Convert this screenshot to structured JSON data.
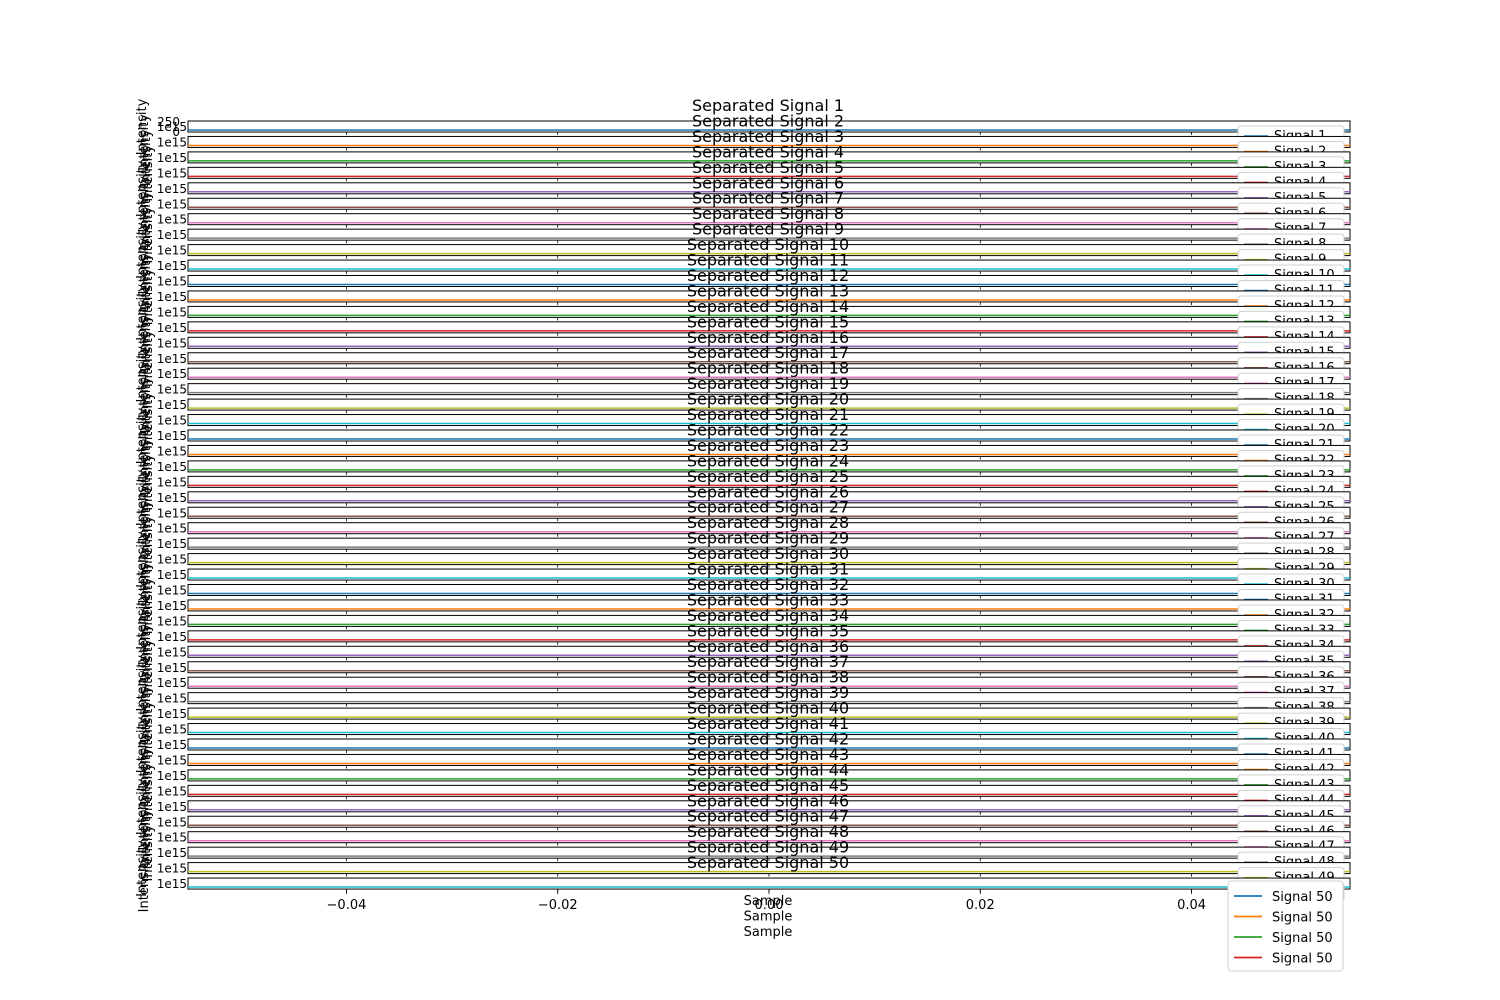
{
  "chart_data": {
    "type": "line",
    "panel_count": 50,
    "panels": [
      {
        "title": "Separated Signal 1",
        "offset_text": "1e15",
        "ylabel": "Intensity",
        "legend": "Signal 1"
      },
      {
        "title": "Separated Signal 2",
        "offset_text": "1e15",
        "ylabel": "Intensity",
        "legend": "Signal 2"
      },
      {
        "title": "Separated Signal 3",
        "offset_text": "1e15",
        "ylabel": "Intensity",
        "legend": "Signal 3"
      },
      {
        "title": "Separated Signal 4",
        "offset_text": "1e15",
        "ylabel": "Intensity",
        "legend": "Signal 4"
      },
      {
        "title": "Separated Signal 5",
        "offset_text": "1e15",
        "ylabel": "Intensity",
        "legend": "Signal 5"
      },
      {
        "title": "Separated Signal 6",
        "offset_text": "1e15",
        "ylabel": "Intensity",
        "legend": "Signal 6"
      },
      {
        "title": "Separated Signal 7",
        "offset_text": "1e15",
        "ylabel": "Intensity",
        "legend": "Signal 7"
      },
      {
        "title": "Separated Signal 8",
        "offset_text": "1e15",
        "ylabel": "Intensity",
        "legend": "Signal 8"
      },
      {
        "title": "Separated Signal 9",
        "offset_text": "1e15",
        "ylabel": "Intensity",
        "legend": "Signal 9"
      },
      {
        "title": "Separated Signal 10",
        "offset_text": "1e15",
        "ylabel": "Intensity",
        "legend": "Signal 10"
      },
      {
        "title": "Separated Signal 11",
        "offset_text": "1e15",
        "ylabel": "Intensity",
        "legend": "Signal 11"
      },
      {
        "title": "Separated Signal 12",
        "offset_text": "1e15",
        "ylabel": "Intensity",
        "legend": "Signal 12"
      },
      {
        "title": "Separated Signal 13",
        "offset_text": "1e15",
        "ylabel": "Intensity",
        "legend": "Signal 13"
      },
      {
        "title": "Separated Signal 14",
        "offset_text": "1e15",
        "ylabel": "Intensity",
        "legend": "Signal 14"
      },
      {
        "title": "Separated Signal 15",
        "offset_text": "1e15",
        "ylabel": "Intensity",
        "legend": "Signal 15"
      },
      {
        "title": "Separated Signal 16",
        "offset_text": "1e15",
        "ylabel": "Intensity",
        "legend": "Signal 16"
      },
      {
        "title": "Separated Signal 17",
        "offset_text": "1e15",
        "ylabel": "Intensity",
        "legend": "Signal 17"
      },
      {
        "title": "Separated Signal 18",
        "offset_text": "1e15",
        "ylabel": "Intensity",
        "legend": "Signal 18"
      },
      {
        "title": "Separated Signal 19",
        "offset_text": "1e15",
        "ylabel": "Intensity",
        "legend": "Signal 19"
      },
      {
        "title": "Separated Signal 20",
        "offset_text": "1e15",
        "ylabel": "Intensity",
        "legend": "Signal 20"
      },
      {
        "title": "Separated Signal 21",
        "offset_text": "1e15",
        "ylabel": "Intensity",
        "legend": "Signal 21"
      },
      {
        "title": "Separated Signal 22",
        "offset_text": "1e15",
        "ylabel": "Intensity",
        "legend": "Signal 22"
      },
      {
        "title": "Separated Signal 23",
        "offset_text": "1e15",
        "ylabel": "Intensity",
        "legend": "Signal 23"
      },
      {
        "title": "Separated Signal 24",
        "offset_text": "1e15",
        "ylabel": "Intensity",
        "legend": "Signal 24"
      },
      {
        "title": "Separated Signal 25",
        "offset_text": "1e15",
        "ylabel": "Intensity",
        "legend": "Signal 25"
      },
      {
        "title": "Separated Signal 26",
        "offset_text": "1e15",
        "ylabel": "Intensity",
        "legend": "Signal 26"
      },
      {
        "title": "Separated Signal 27",
        "offset_text": "1e15",
        "ylabel": "Intensity",
        "legend": "Signal 27"
      },
      {
        "title": "Separated Signal 28",
        "offset_text": "1e15",
        "ylabel": "Intensity",
        "legend": "Signal 28"
      },
      {
        "title": "Separated Signal 29",
        "offset_text": "1e15",
        "ylabel": "Intensity",
        "legend": "Signal 29"
      },
      {
        "title": "Separated Signal 30",
        "offset_text": "1e15",
        "ylabel": "Intensity",
        "legend": "Signal 30"
      },
      {
        "title": "Separated Signal 31",
        "offset_text": "1e15",
        "ylabel": "Intensity",
        "legend": "Signal 31"
      },
      {
        "title": "Separated Signal 32",
        "offset_text": "1e15",
        "ylabel": "Intensity",
        "legend": "Signal 32"
      },
      {
        "title": "Separated Signal 33",
        "offset_text": "1e15",
        "ylabel": "Intensity",
        "legend": "Signal 33"
      },
      {
        "title": "Separated Signal 34",
        "offset_text": "1e15",
        "ylabel": "Intensity",
        "legend": "Signal 34"
      },
      {
        "title": "Separated Signal 35",
        "offset_text": "1e15",
        "ylabel": "Intensity",
        "legend": "Signal 35"
      },
      {
        "title": "Separated Signal 36",
        "offset_text": "1e15",
        "ylabel": "Intensity",
        "legend": "Signal 36"
      },
      {
        "title": "Separated Signal 37",
        "offset_text": "1e15",
        "ylabel": "Intensity",
        "legend": "Signal 37"
      },
      {
        "title": "Separated Signal 38",
        "offset_text": "1e15",
        "ylabel": "Intensity",
        "legend": "Signal 38"
      },
      {
        "title": "Separated Signal 39",
        "offset_text": "1e15",
        "ylabel": "Intensity",
        "legend": "Signal 39"
      },
      {
        "title": "Separated Signal 40",
        "offset_text": "1e15",
        "ylabel": "Intensity",
        "legend": "Signal 40"
      },
      {
        "title": "Separated Signal 41",
        "offset_text": "1e15",
        "ylabel": "Intensity",
        "legend": "Signal 41"
      },
      {
        "title": "Separated Signal 42",
        "offset_text": "1e15",
        "ylabel": "Intensity",
        "legend": "Signal 42"
      },
      {
        "title": "Separated Signal 43",
        "offset_text": "1e15",
        "ylabel": "Intensity",
        "legend": "Signal 43"
      },
      {
        "title": "Separated Signal 44",
        "offset_text": "1e15",
        "ylabel": "Intensity",
        "legend": "Signal 44"
      },
      {
        "title": "Separated Signal 45",
        "offset_text": "1e15",
        "ylabel": "Intensity",
        "legend": "Signal 45"
      },
      {
        "title": "Separated Signal 46",
        "offset_text": "1e15",
        "ylabel": "Intensity",
        "legend": "Signal 46"
      },
      {
        "title": "Separated Signal 47",
        "offset_text": "1e15",
        "ylabel": "Intensity",
        "legend": "Signal 47"
      },
      {
        "title": "Separated Signal 48",
        "offset_text": "1e15",
        "ylabel": "Intensity",
        "legend": "Signal 48"
      },
      {
        "title": "Separated Signal 49",
        "offset_text": "1e15",
        "ylabel": "Intensity",
        "legend": "Signal 49"
      },
      {
        "title": "Separated Signal 50",
        "offset_text": "1e15",
        "ylabel": "Intensity",
        "legend": "Signal 50"
      }
    ],
    "top_panel_yticks": [
      "250",
      "0"
    ],
    "xlabel": "Sample",
    "xlabel_repeats": 3,
    "xlim": [
      -0.055,
      0.055
    ],
    "xticks": [
      -0.04,
      -0.02,
      0.0,
      0.02,
      0.04
    ],
    "xtick_labels": [
      "−0.04",
      "−0.02",
      "0.00",
      "0.02",
      "0.04"
    ],
    "grid": false,
    "final_legend": {
      "placement": "bottom-right",
      "entries": [
        {
          "label": "Signal 50",
          "color": "#1f77b4"
        },
        {
          "label": "Signal 50",
          "color": "#ff7f0e"
        },
        {
          "label": "Signal 50",
          "color": "#2ca02c"
        },
        {
          "label": "Signal 50",
          "color": "#d62728"
        }
      ]
    }
  }
}
